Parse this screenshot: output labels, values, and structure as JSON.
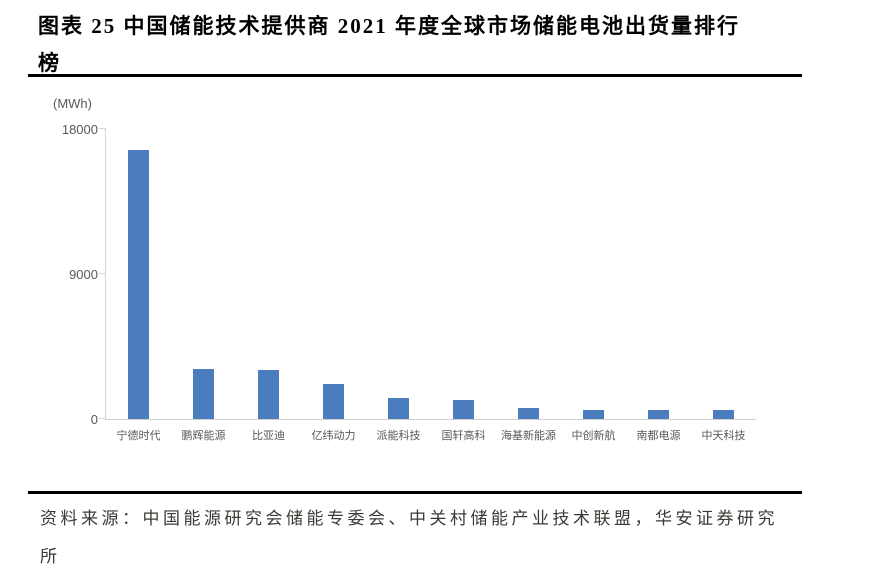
{
  "page": {
    "title_lines": {
      "line1": "图表 25 中国储能技术提供商 2021 年度全球市场储能电池出货量排行",
      "line2": "榜"
    },
    "source_lines": {
      "line1": "资料来源：中国能源研究会储能专委会、中关村储能产业技术联盟，华安证券研究",
      "line2": "所"
    }
  },
  "chart_data": {
    "type": "bar",
    "title": "图表 25 中国储能技术提供商2021年度全球市场储能电池出货量排行榜",
    "unit_label": "(MWh)",
    "xlabel": "",
    "ylabel": "(MWh)",
    "categories": [
      "宁德时代",
      "鹏辉能源",
      "比亚迪",
      "亿纬动力",
      "派能科技",
      "国轩高科",
      "海基新能源",
      "中创新航",
      "南都电源",
      "中天科技"
    ],
    "values": [
      16700,
      3100,
      3050,
      2200,
      1320,
      1210,
      700,
      590,
      550,
      580
    ],
    "ylim": [
      0,
      18000
    ],
    "yticks": [
      0,
      9000,
      18000
    ],
    "grid": false,
    "legend": "none",
    "source": "资料来源：中国能源研究会储能专委会、中关村储能产业技术联盟，华安证券研究所"
  },
  "colors": {
    "bar": "#4b7cbe",
    "axis_line": "#d6d6d6",
    "axis_text": "#595959",
    "title_text": "#000000",
    "source_text": "#3d3a35",
    "rule": "#000000"
  }
}
